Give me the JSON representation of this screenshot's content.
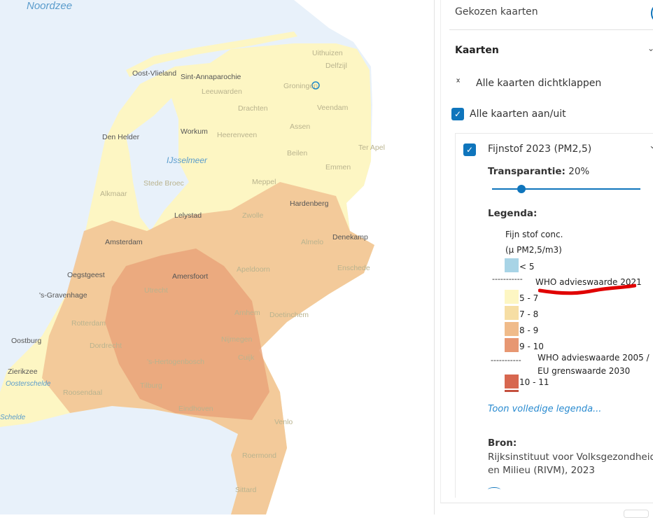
{
  "map": {
    "water_labels": [
      "Noordzee",
      "IJsselmeer",
      "Oosterschelde",
      "Schelde"
    ],
    "places": [
      "Oost-Vlieland",
      "Sint-Annaparochie",
      "Leeuwarden",
      "Uithuizen",
      "Delfzijl",
      "Groningen",
      "Drachten",
      "Veendam",
      "Den Helder",
      "Workum",
      "Heerenveen",
      "Assen",
      "Ter Apel",
      "Beilen",
      "Emmen",
      "IJsselmeer",
      "Stede Broec",
      "Meppel",
      "Alkmaar",
      "Hardenberg",
      "Lelystad",
      "Zwolle",
      "Amsterdam",
      "Almelo",
      "Denekamp",
      "Oegstgeest",
      "Apeldoorn",
      "Enschede",
      "Amersfoort",
      "'s-Gravenhage",
      "Utrecht",
      "Arnhem",
      "Doetinchem",
      "Rotterdam",
      "Nijmegen",
      "Dordrecht",
      "Oostburg",
      "'s-Hertogenbosch",
      "Cuijk",
      "Zierikzee",
      "Roosendaal",
      "Tilburg",
      "Eindhoven",
      "Venlo",
      "Roermond",
      "Sittard"
    ],
    "colors": {
      "sea": "#e8f1fa",
      "lt5": "#a8d4e6",
      "c5_7": "#fdf6c3",
      "c7_8": "#f6dea4",
      "c8_9": "#f0bb8a",
      "c9_10": "#e79772",
      "c10_11": "#d7674f"
    }
  },
  "panel": {
    "chosen_maps": "Gekozen kaarten",
    "maps_header": "Kaarten",
    "collapse_all": "Alle kaarten dichtklappen",
    "toggle_all": "Alle kaarten aan/uit",
    "layer": {
      "title": "Fijnstof 2023 (PM2,5)",
      "transparency_label": "Transparantie:",
      "transparency_value": "20%",
      "transparency_fraction": 0.2,
      "legend_label": "Legenda:",
      "legend_title_1": "Fijn stof conc.",
      "legend_title_2": "(µ PM2,5/m3)",
      "legend": [
        {
          "label": "< 5",
          "color": "#a8d4e6"
        },
        {
          "label": "5 - 7",
          "color": "#fdf6c3"
        },
        {
          "label": "7 - 8",
          "color": "#f6dea4"
        },
        {
          "label": "8 - 9",
          "color": "#f0bb8a"
        },
        {
          "label": "9 - 10",
          "color": "#e79772"
        },
        {
          "label": "10 - 11",
          "color": "#d7674f"
        }
      ],
      "line_dashes": "-----------",
      "who_2021": "WHO advieswaarde 2021",
      "who_2005_1": "WHO advieswaarde 2005 /",
      "who_2005_2": "EU grenswaarde 2030",
      "full_legend_link": "Toon volledige legenda...",
      "source_label": "Bron:",
      "source_1": "Rijksinstituut voor Volksgezondheid",
      "source_2": "en Milieu (RIVM), 2023"
    },
    "accent": "#0f75bc"
  }
}
